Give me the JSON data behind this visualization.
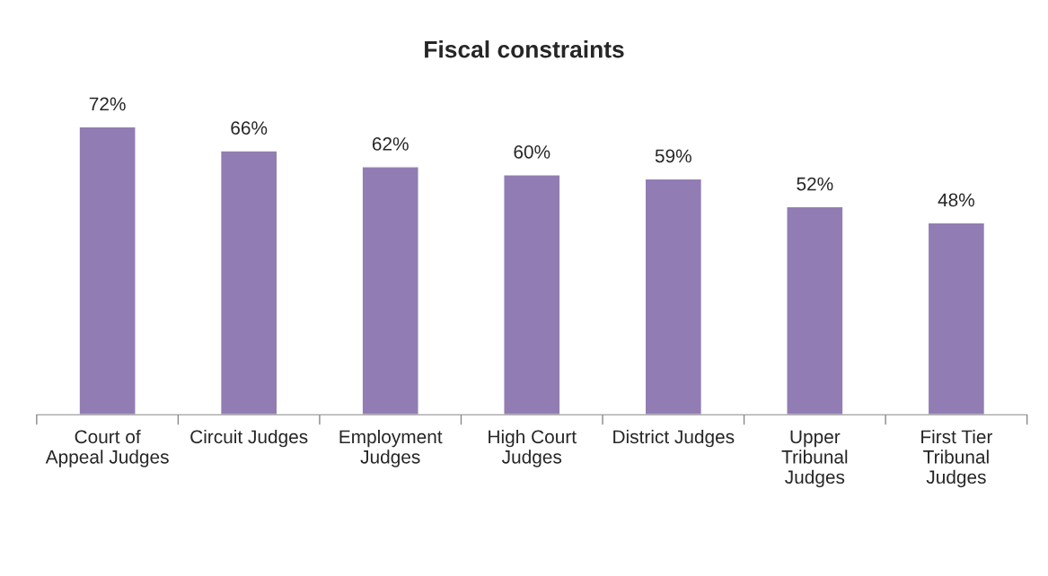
{
  "chart_data": {
    "type": "bar",
    "title": "Fiscal constraints",
    "categories": [
      "Court of\nAppeal Judges",
      "Circuit Judges",
      "Employment\nJudges",
      "High Court\nJudges",
      "District Judges",
      "Upper\nTribunal\nJudges",
      "First Tier\nTribunal\nJudges"
    ],
    "values": [
      72,
      66,
      62,
      60,
      59,
      52,
      48
    ],
    "value_labels": [
      "72%",
      "66%",
      "62%",
      "60%",
      "59%",
      "52%",
      "48%"
    ],
    "color": "#917db3",
    "grid": false,
    "legend": false,
    "tick_labels": "x"
  }
}
